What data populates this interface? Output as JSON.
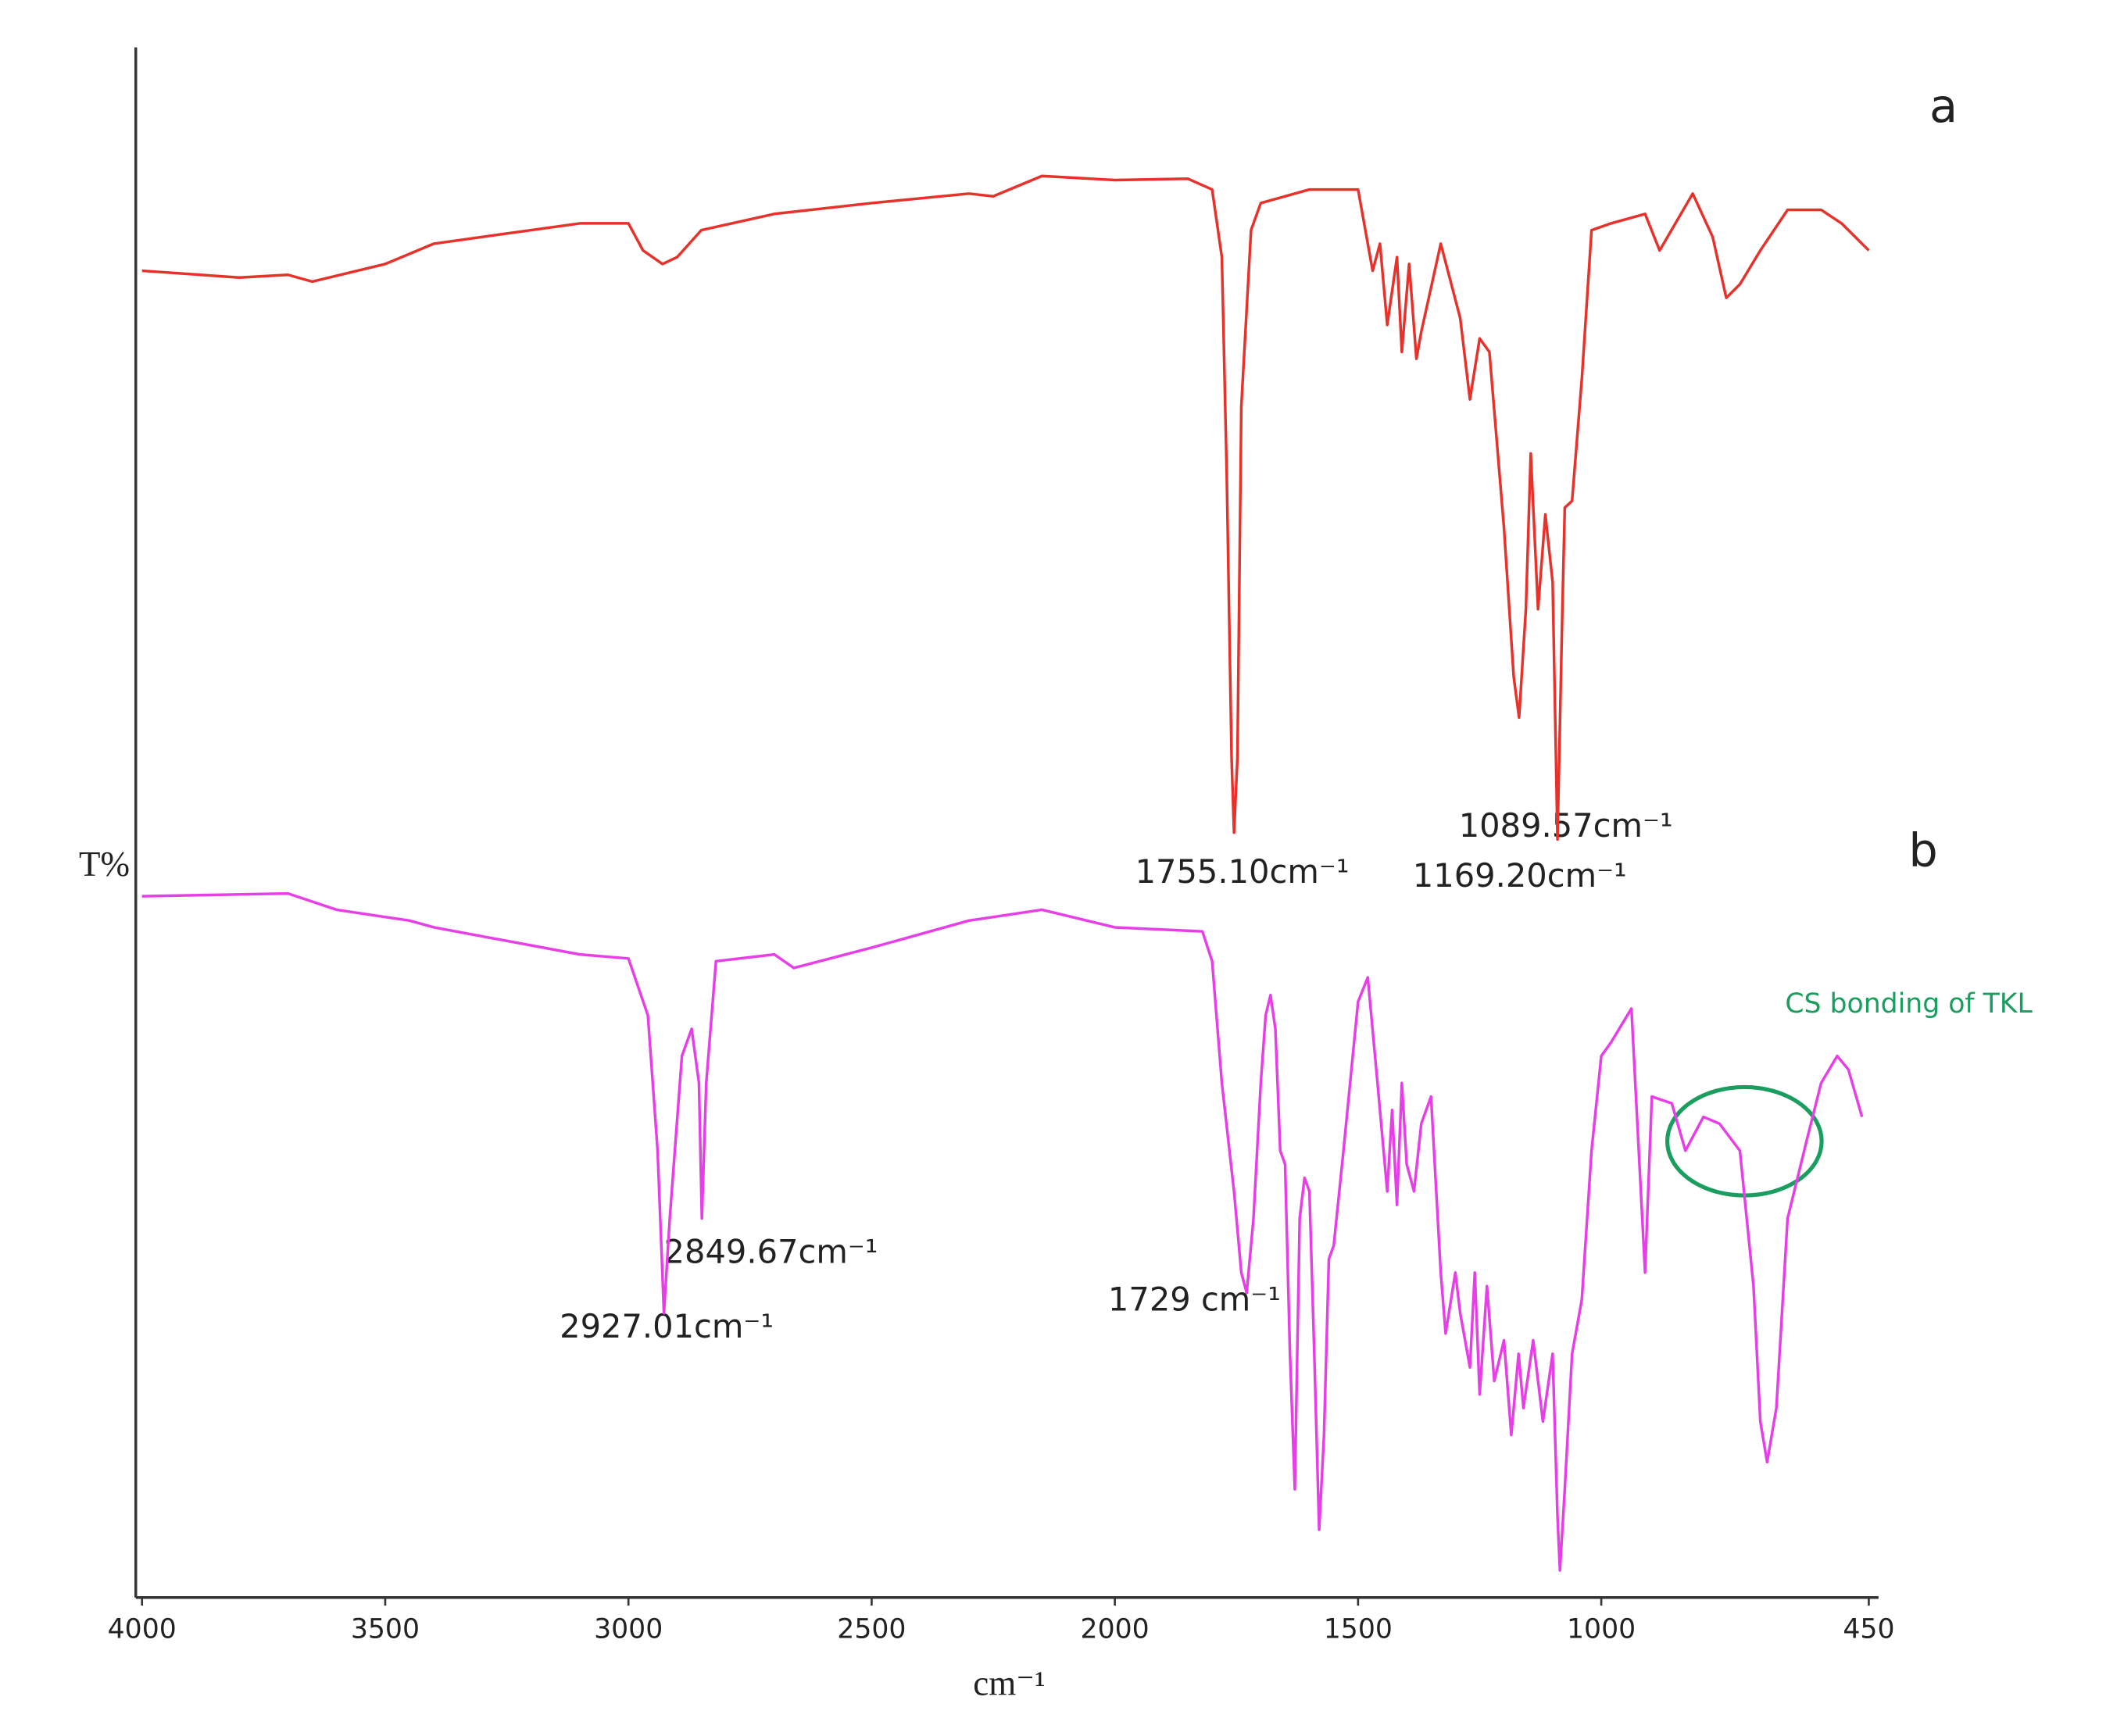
{
  "chart_data": {
    "type": "line",
    "x_label": "cm⁻¹",
    "y_label": "T%",
    "xlim": [
      4010,
      430
    ],
    "xticks": [
      4000,
      3500,
      3000,
      2500,
      2000,
      1500,
      1000,
      450
    ],
    "ylim": [
      0,
      115
    ],
    "series": [
      {
        "name": "a",
        "color": "#e8312a",
        "x": [
          4000,
          3800,
          3700,
          3650,
          3500,
          3400,
          3100,
          3000,
          2970,
          2930,
          2900,
          2850,
          2700,
          2500,
          2300,
          2250,
          2150,
          2000,
          1850,
          1800,
          1780,
          1770,
          1760,
          1755,
          1748,
          1740,
          1720,
          1700,
          1600,
          1500,
          1470,
          1455,
          1440,
          1420,
          1410,
          1395,
          1380,
          1370,
          1330,
          1290,
          1270,
          1250,
          1230,
          1200,
          1180,
          1169,
          1155,
          1145,
          1130,
          1115,
          1100,
          1090,
          1080,
          1075,
          1060,
          1040,
          1020,
          980,
          910,
          880,
          812,
          771,
          743,
          715,
          673,
          617,
          548,
          506,
          450
        ],
        "values": [
          98.0,
          97.5,
          97.7,
          97.2,
          98.5,
          100.0,
          101.5,
          101.5,
          99.5,
          98.5,
          99.0,
          101.0,
          102.2,
          103.0,
          103.7,
          103.5,
          105.0,
          104.7,
          104.8,
          104.0,
          99.0,
          83.0,
          62.0,
          56.5,
          62.0,
          88.0,
          101.0,
          103.0,
          104.0,
          104.0,
          98.0,
          100.0,
          94.0,
          99.0,
          92.0,
          98.5,
          91.5,
          93.5,
          100.0,
          94.5,
          88.5,
          93.0,
          92.0,
          79.0,
          68.0,
          65.0,
          73.0,
          84.5,
          73.0,
          80.0,
          75.0,
          56.0,
          73.0,
          80.5,
          81.0,
          90.0,
          101.0,
          101.5,
          102.2,
          99.5,
          103.7,
          100.5,
          96.0,
          97.0,
          99.5,
          102.5,
          102.5,
          101.5,
          99.5
        ]
      },
      {
        "name": "b",
        "color": "#e83ee8",
        "x": [
          4000,
          3700,
          3600,
          3450,
          3400,
          3100,
          3000,
          2960,
          2940,
          2927,
          2915,
          2890,
          2870,
          2855,
          2849,
          2840,
          2820,
          2700,
          2660,
          2500,
          2300,
          2150,
          2000,
          1820,
          1800,
          1780,
          1755,
          1740,
          1729,
          1715,
          1700,
          1690,
          1680,
          1670,
          1660,
          1650,
          1640,
          1630,
          1620,
          1610,
          1600,
          1590,
          1580,
          1570,
          1560,
          1550,
          1530,
          1500,
          1480,
          1460,
          1440,
          1430,
          1420,
          1410,
          1400,
          1385,
          1370,
          1350,
          1330,
          1320,
          1300,
          1290,
          1270,
          1260,
          1250,
          1235,
          1220,
          1200,
          1185,
          1170,
          1160,
          1140,
          1120,
          1100,
          1090,
          1085,
          1075,
          1060,
          1040,
          1020,
          1000,
          980,
          938,
          910,
          896,
          855,
          827,
          790,
          757,
          715,
          687,
          673,
          659,
          640,
          617,
          576,
          548,
          515,
          492,
          464
        ],
        "values": [
          51.8,
          52.0,
          50.8,
          50.0,
          49.5,
          47.5,
          47.2,
          43.0,
          33.0,
          21.0,
          28.0,
          40.0,
          42.0,
          38.0,
          28.0,
          38.0,
          47.0,
          47.5,
          46.5,
          48.0,
          50.0,
          50.8,
          49.5,
          49.2,
          47.0,
          38.0,
          30.0,
          24.0,
          22.5,
          28.0,
          38.0,
          43.0,
          44.5,
          42.0,
          33.0,
          32.0,
          18.0,
          8.0,
          28.0,
          31.0,
          30.0,
          18.0,
          5.0,
          12.0,
          25.0,
          26.0,
          33.0,
          44.0,
          45.8,
          38.0,
          30.0,
          36.0,
          29.0,
          38.0,
          32.0,
          30.0,
          35.0,
          37.0,
          24.0,
          19.5,
          24.0,
          21.0,
          17.0,
          24.0,
          15.0,
          23.0,
          16.0,
          19.0,
          12.0,
          18.0,
          14.0,
          19.0,
          13.0,
          18.0,
          6.0,
          2.0,
          8.0,
          18.0,
          22.0,
          33.0,
          40.0,
          41.0,
          43.5,
          24.0,
          37.0,
          36.5,
          33.0,
          35.5,
          35.0,
          33.0,
          23.0,
          13.0,
          10.0,
          14.0,
          28.0,
          34.0,
          38.0,
          40.0,
          39.0,
          35.5
        ]
      }
    ],
    "annotations": [
      "1755.10cm⁻¹",
      "1089.57cm⁻¹",
      "1169.20cm⁻¹",
      "2849.67cm⁻¹",
      "2927.01cm⁻¹",
      "1729 cm⁻¹",
      "CS bonding of TKL"
    ]
  }
}
